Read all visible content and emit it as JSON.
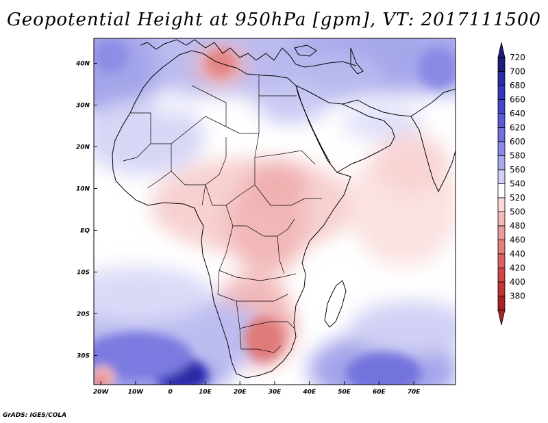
{
  "title": "Geopotential Height at 950hPa [gpm], VT: 2017111500",
  "credit": "GrADS: IGES/COLA",
  "map": {
    "projection": "latlon",
    "lon_range": [
      -22,
      82
    ],
    "lat_range": [
      -37,
      46
    ],
    "lat_ticks": [
      {
        "label": "40N",
        "lat": 40
      },
      {
        "label": "30N",
        "lat": 30
      },
      {
        "label": "20N",
        "lat": 20
      },
      {
        "label": "10N",
        "lat": 10
      },
      {
        "label": "EQ",
        "lat": 0
      },
      {
        "label": "10S",
        "lat": -10
      },
      {
        "label": "20S",
        "lat": -20
      },
      {
        "label": "30S",
        "lat": -30
      }
    ],
    "lon_ticks": [
      {
        "label": "20W",
        "lon": -20
      },
      {
        "label": "10W",
        "lon": -10
      },
      {
        "label": "0",
        "lon": 0
      },
      {
        "label": "10E",
        "lon": 10
      },
      {
        "label": "20E",
        "lon": 20
      },
      {
        "label": "30E",
        "lon": 30
      },
      {
        "label": "40E",
        "lon": 40
      },
      {
        "label": "50E",
        "lon": 50
      },
      {
        "label": "60E",
        "lon": 60
      },
      {
        "label": "70E",
        "lon": 70
      }
    ]
  },
  "colorbar": {
    "levels": [
      {
        "label": "720",
        "color": "#1c1c7a"
      },
      {
        "label": "700",
        "color": "#2a2aa6"
      },
      {
        "label": "680",
        "color": "#3535bf"
      },
      {
        "label": "660",
        "color": "#4545cc"
      },
      {
        "label": "640",
        "color": "#5a5ad5"
      },
      {
        "label": "620",
        "color": "#7070de"
      },
      {
        "label": "600",
        "color": "#8a8ae6"
      },
      {
        "label": "580",
        "color": "#a9a9ee"
      },
      {
        "label": "560",
        "color": "#d2d2f6"
      },
      {
        "label": "540",
        "color": "#ffffff"
      },
      {
        "label": "520",
        "color": "#fad9d9"
      },
      {
        "label": "500",
        "color": "#f3baba"
      },
      {
        "label": "480",
        "color": "#ec9c9c"
      },
      {
        "label": "460",
        "color": "#e47f7f"
      },
      {
        "label": "440",
        "color": "#dc6262"
      },
      {
        "label": "420",
        "color": "#d14747"
      },
      {
        "label": "400",
        "color": "#c23535"
      },
      {
        "label": "380",
        "color": "#a82424"
      }
    ],
    "min_arrow_color": "#a82424",
    "max_arrow_color": "#1c1c7a"
  }
}
